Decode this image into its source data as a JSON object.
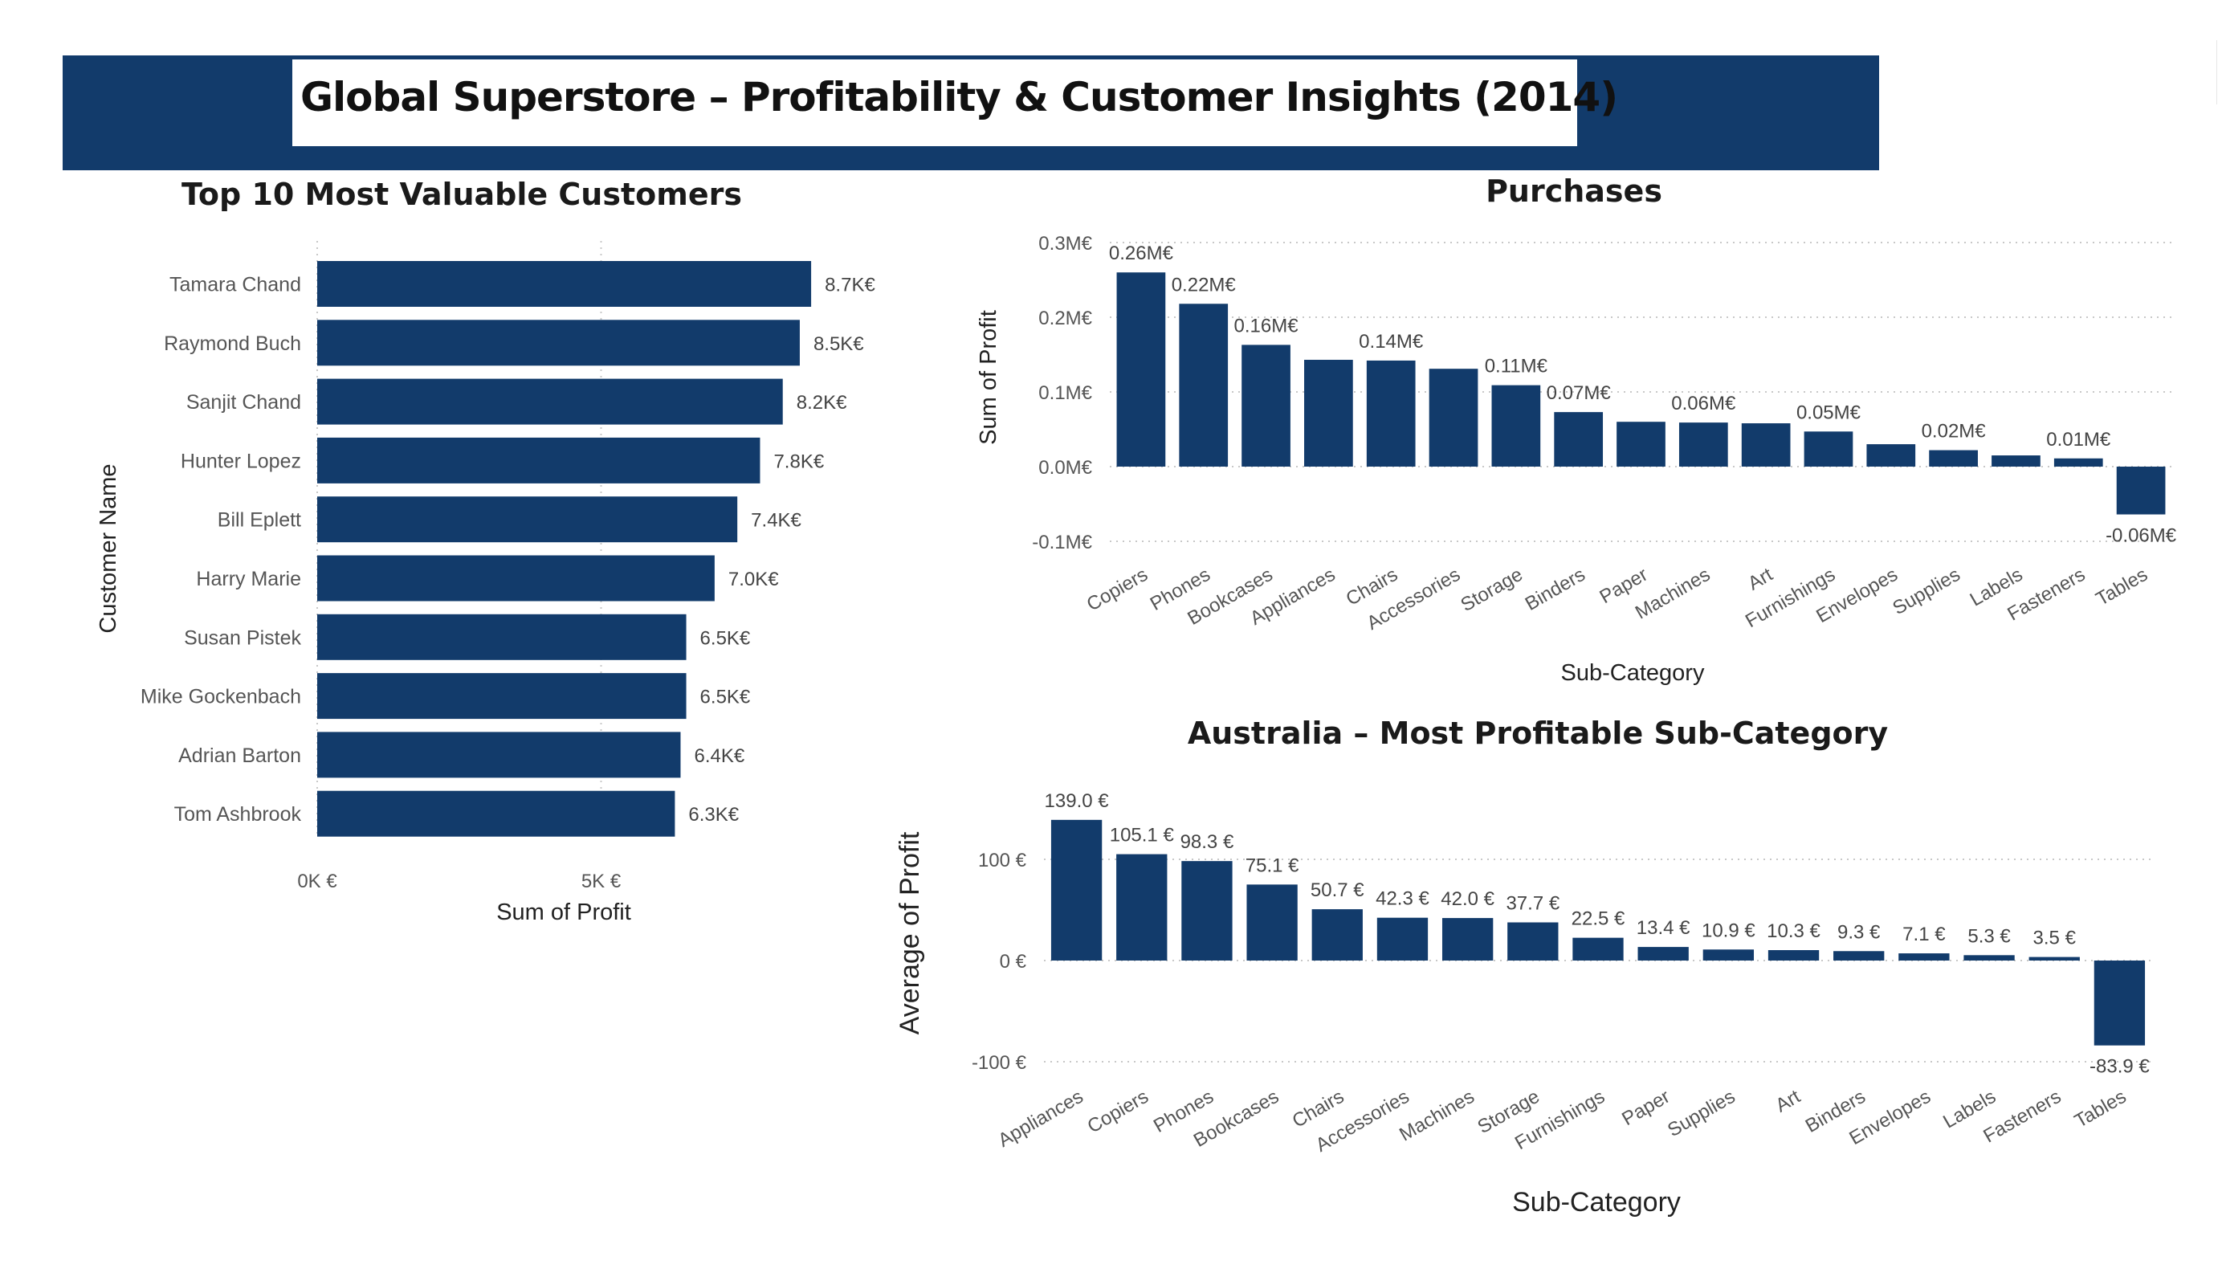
{
  "header": {
    "title": "Global Superstore – Profitability & Customer Insights (2014)"
  },
  "colors": {
    "bar": "#123b6b",
    "banner": "#123b6b"
  },
  "chart_data": [
    {
      "id": "customers",
      "type": "bar",
      "orientation": "horizontal",
      "title": "Top 10 Most Valuable Customers",
      "xlabel": "Sum of Profit",
      "ylabel": "Customer Name",
      "categories": [
        "Tamara Chand",
        "Raymond Buch",
        "Sanjit Chand",
        "Hunter Lopez",
        "Bill Eplett",
        "Harry Marie",
        "Susan Pistek",
        "Mike Gockenbach",
        "Adrian Barton",
        "Tom Ashbrook"
      ],
      "values": [
        8700,
        8500,
        8200,
        7800,
        7400,
        7000,
        6500,
        6500,
        6400,
        6300
      ],
      "data_labels": [
        "8.7K€",
        "8.5K€",
        "8.2K€",
        "7.8K€",
        "7.4K€",
        "7.0K€",
        "6.5K€",
        "6.5K€",
        "6.4K€",
        "6.3K€"
      ],
      "xticks": [
        {
          "value": 0,
          "label": "0K €"
        },
        {
          "value": 5000,
          "label": "5K €"
        }
      ],
      "xlim": [
        0,
        10000
      ],
      "grid": true
    },
    {
      "id": "purchases",
      "type": "bar",
      "title": "Purchases",
      "xlabel": "Sub-Category",
      "ylabel": "Sum of Profit",
      "categories": [
        "Copiers",
        "Phones",
        "Bookcases",
        "Appliances",
        "Chairs",
        "Accessories",
        "Storage",
        "Binders",
        "Paper",
        "Machines",
        "Art",
        "Furnishings",
        "Envelopes",
        "Supplies",
        "Labels",
        "Fasteners",
        "Tables"
      ],
      "values": [
        0.26,
        0.218,
        0.163,
        0.143,
        0.142,
        0.131,
        0.109,
        0.073,
        0.06,
        0.059,
        0.058,
        0.047,
        0.03,
        0.022,
        0.015,
        0.011,
        -0.064
      ],
      "data_labels": [
        "0.26M€",
        "0.22M€",
        "0.16M€",
        "",
        "0.14M€",
        "",
        "0.11M€",
        "0.07M€",
        "",
        "0.06M€",
        "",
        "0.05M€",
        "",
        "0.02M€",
        "",
        "0.01M€",
        "-0.06M€"
      ],
      "yticks": [
        {
          "value": 0.3,
          "label": "0.3M€"
        },
        {
          "value": 0.2,
          "label": "0.2M€"
        },
        {
          "value": 0.1,
          "label": "0.1M€"
        },
        {
          "value": 0,
          "label": "0.0M€"
        },
        {
          "value": -0.1,
          "label": "-0.1M€"
        }
      ],
      "ylim": [
        -0.1,
        0.3
      ],
      "grid": true
    },
    {
      "id": "australia",
      "type": "bar",
      "title": "Australia – Most Profitable Sub-Category",
      "xlabel": "Sub-Category",
      "ylabel": "Average of Profit",
      "categories": [
        "Appliances",
        "Copiers",
        "Phones",
        "Bookcases",
        "Chairs",
        "Accessories",
        "Machines",
        "Storage",
        "Furnishings",
        "Paper",
        "Supplies",
        "Art",
        "Binders",
        "Envelopes",
        "Labels",
        "Fasteners",
        "Tables"
      ],
      "values": [
        139.0,
        105.1,
        98.3,
        75.1,
        50.7,
        42.3,
        42.0,
        37.7,
        22.5,
        13.4,
        10.9,
        10.3,
        9.3,
        7.1,
        5.3,
        3.5,
        -83.9
      ],
      "data_labels": [
        "139.0 €",
        "105.1 €",
        "98.3 €",
        "75.1 €",
        "50.7 €",
        "42.3 €",
        "42.0 €",
        "37.7 €",
        "22.5 €",
        "13.4 €",
        "10.9 €",
        "10.3 €",
        "9.3 €",
        "7.1 €",
        "5.3 €",
        "3.5 €",
        "-83.9 €"
      ],
      "yticks": [
        {
          "value": 100,
          "label": "100 €"
        },
        {
          "value": 0,
          "label": "0 €"
        },
        {
          "value": -100,
          "label": "-100 €"
        }
      ],
      "ylim": [
        -100,
        100
      ],
      "grid": true
    }
  ]
}
